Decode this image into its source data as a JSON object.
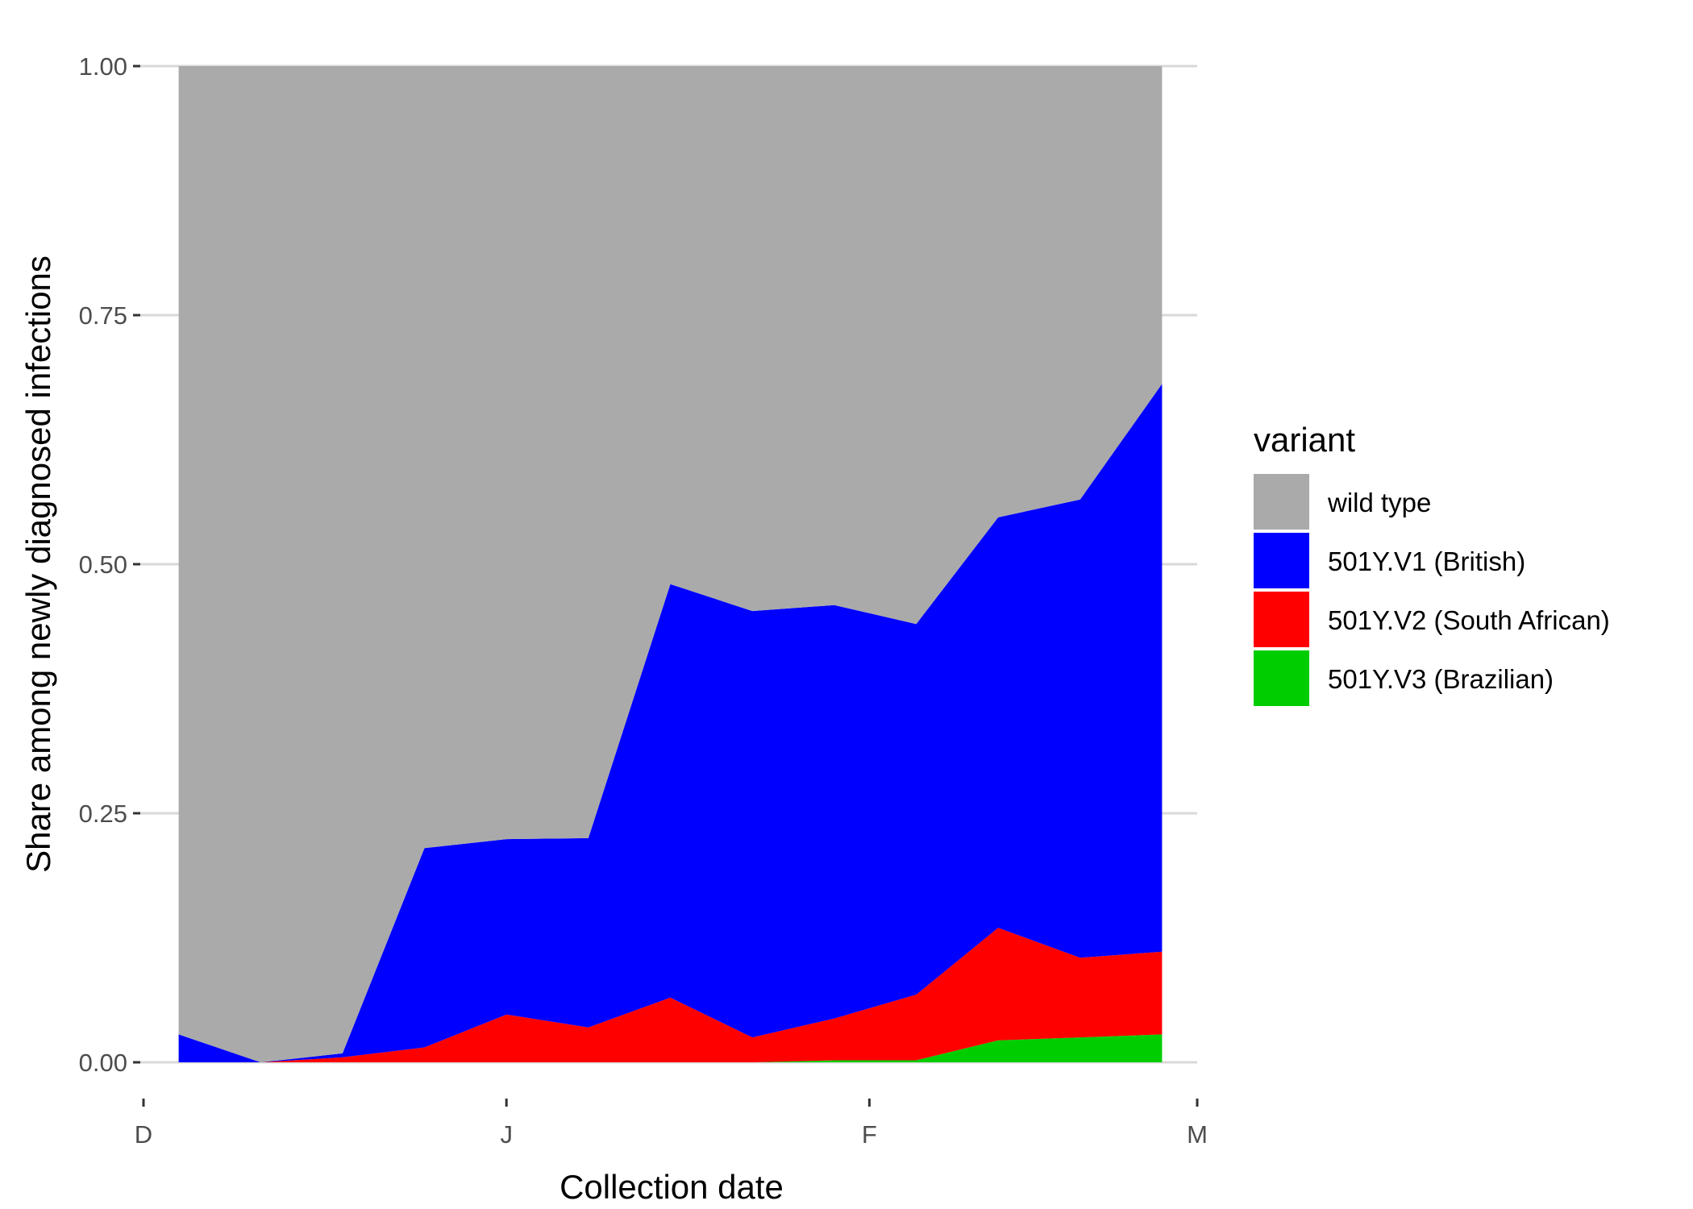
{
  "chart_data": {
    "type": "area",
    "stacked": true,
    "title": "",
    "xlabel": "Collection date",
    "ylabel": "Share among newly diagnosed infections",
    "x_ticks": [
      "D",
      "J",
      "F",
      "M"
    ],
    "y_ticks": [
      "0.00",
      "0.25",
      "0.50",
      "0.75",
      "1.00"
    ],
    "ylim": [
      0,
      1
    ],
    "x": [
      "2020-12-04",
      "2020-12-11",
      "2020-12-18",
      "2020-12-25",
      "2021-01-01",
      "2021-01-08",
      "2021-01-15",
      "2021-01-22",
      "2021-01-29",
      "2021-02-05",
      "2021-02-12",
      "2021-02-19",
      "2021-02-26"
    ],
    "x_range": [
      "2020-12-01",
      "2021-03-01"
    ],
    "grid": "horizontal",
    "legend": {
      "title": "variant",
      "position": "right",
      "items": [
        "wild type",
        "501Y.V1 (British)",
        "501Y.V2 (South African)",
        "501Y.V3 (Brazilian)"
      ]
    },
    "series": [
      {
        "name": "501Y.V3 (Brazilian)",
        "color": "#00CD00",
        "values": [
          0,
          0,
          0,
          0,
          0,
          0,
          0,
          0,
          0.002,
          0.002,
          0.022,
          0.025,
          0.028
        ]
      },
      {
        "name": "501Y.V2 (South African)",
        "color": "#FF0000",
        "values": [
          0,
          0,
          0.005,
          0.015,
          0.048,
          0.035,
          0.065,
          0.025,
          0.042,
          0.066,
          0.113,
          0.08,
          0.083
        ]
      },
      {
        "name": "501Y.V1 (British)",
        "color": "#0000FF",
        "values": [
          0.028,
          0,
          0.004,
          0.2,
          0.176,
          0.19,
          0.415,
          0.428,
          0.415,
          0.372,
          0.412,
          0.46,
          0.57
        ]
      },
      {
        "name": "wild type",
        "color": "#AAAAAA",
        "values": [
          0.972,
          1.0,
          0.991,
          0.785,
          0.776,
          0.775,
          0.52,
          0.547,
          0.541,
          0.56,
          0.453,
          0.435,
          0.319
        ]
      }
    ]
  }
}
